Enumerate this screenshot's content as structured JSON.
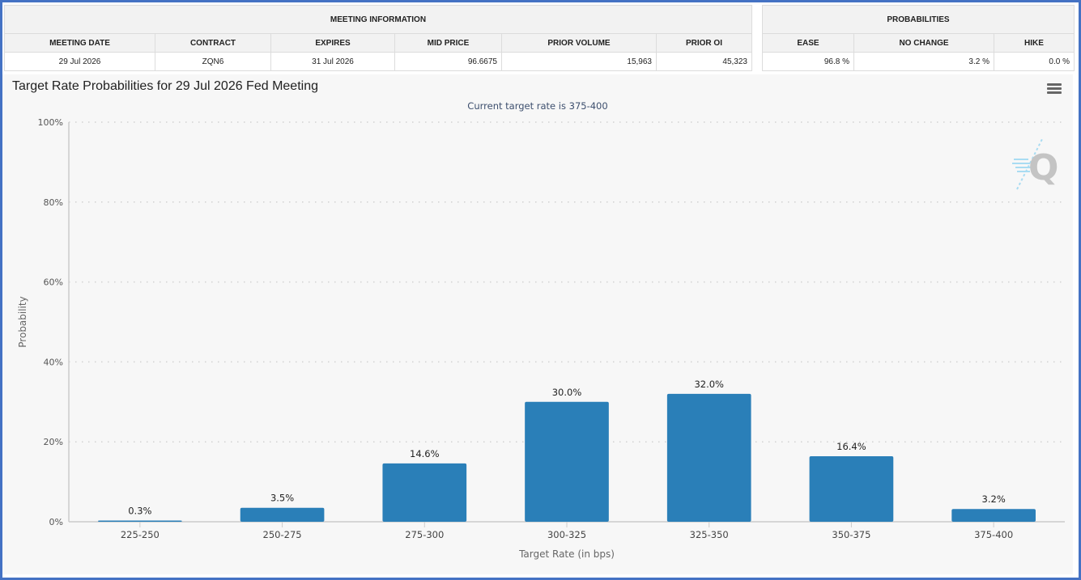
{
  "meeting_information": {
    "title": "MEETING INFORMATION",
    "columns": [
      "MEETING DATE",
      "CONTRACT",
      "EXPIRES",
      "MID PRICE",
      "PRIOR VOLUME",
      "PRIOR OI"
    ],
    "row": [
      "29 Jul 2026",
      "ZQN6",
      "31 Jul 2026",
      "96.6675",
      "15,963",
      "45,323"
    ]
  },
  "probabilities": {
    "title": "PROBABILITIES",
    "columns": [
      "EASE",
      "NO CHANGE",
      "HIKE"
    ],
    "row": [
      "96.8 %",
      "3.2 %",
      "0.0 %"
    ]
  },
  "chart_header": {
    "menu_icon": "hamburger-menu-icon",
    "watermark_icon": "quikstrike-q-logo"
  },
  "chart_data": {
    "type": "bar",
    "title": "Target Rate Probabilities for 29 Jul 2026 Fed Meeting",
    "subtitle": "Current target rate is 375-400",
    "xlabel": "Target Rate (in bps)",
    "ylabel": "Probability",
    "categories": [
      "225-250",
      "250-275",
      "275-300",
      "300-325",
      "325-350",
      "350-375",
      "375-400"
    ],
    "values": [
      0.3,
      3.5,
      14.6,
      30.0,
      32.0,
      16.4,
      3.2
    ],
    "data_labels": [
      "0.3%",
      "3.5%",
      "14.6%",
      "30.0%",
      "32.0%",
      "16.4%",
      "3.2%"
    ],
    "ylim": [
      0,
      100
    ],
    "yticks": [
      0,
      20,
      40,
      60,
      80,
      100
    ],
    "ytick_labels": [
      "0%",
      "20%",
      "40%",
      "60%",
      "80%",
      "100%"
    ],
    "grid": true,
    "legend": "none",
    "bar_color": "#2a7fb8"
  }
}
